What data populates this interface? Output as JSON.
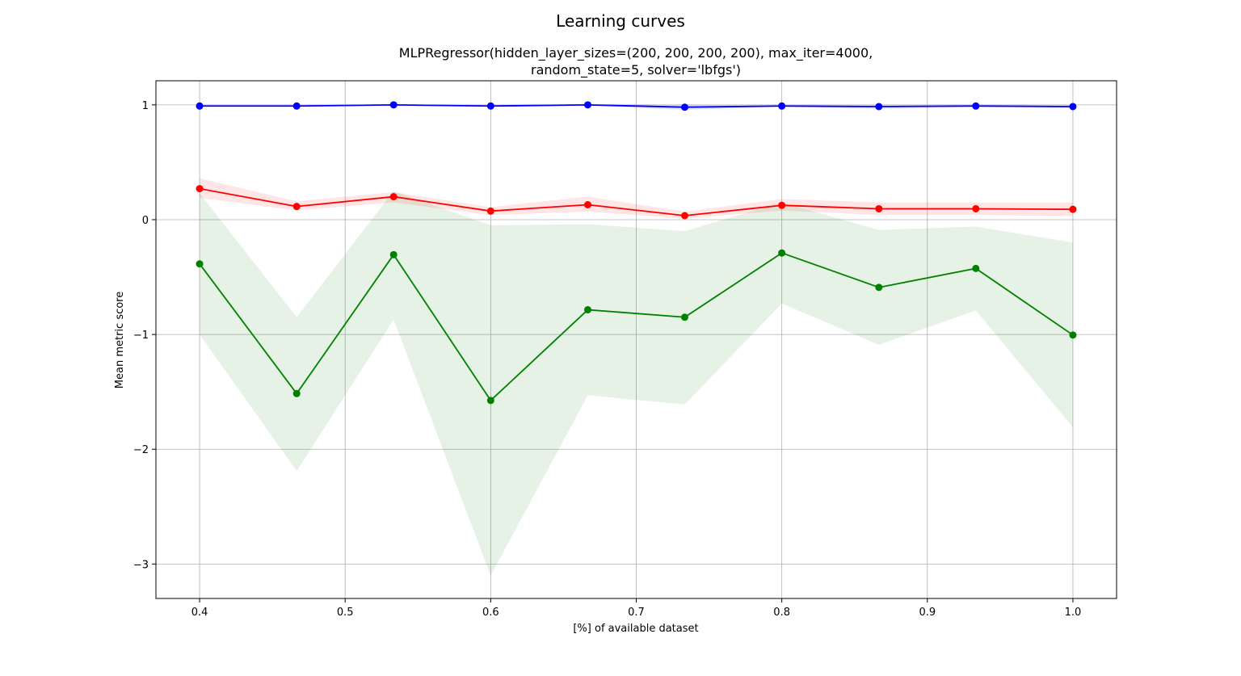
{
  "chart_data": {
    "type": "line",
    "title": "Learning curves",
    "subtitle_lines": [
      "MLPRegressor(hidden_layer_sizes=(200, 200, 200, 200), max_iter=4000,",
      "random_state=5, solver='lbfgs')"
    ],
    "xlabel": "[%] of available dataset",
    "ylabel": "Mean metric score",
    "xlim": [
      0.37,
      1.03
    ],
    "ylim": [
      -3.3,
      1.21
    ],
    "x_ticks": [
      0.4,
      0.5,
      0.6,
      0.7,
      0.8,
      0.9,
      1.0
    ],
    "x_tick_labels": [
      "0.4",
      "0.5",
      "0.6",
      "0.7",
      "0.8",
      "0.9",
      "1.0"
    ],
    "y_ticks": [
      -3,
      -2,
      -1,
      0,
      1
    ],
    "y_tick_labels": [
      "−3",
      "−2",
      "−1",
      "0",
      "1"
    ],
    "grid": true,
    "x": [
      0.4,
      0.4667,
      0.5333,
      0.6,
      0.6667,
      0.7333,
      0.8,
      0.8667,
      0.9333,
      1.0
    ],
    "series": [
      {
        "color": "#0000ff",
        "values": [
          0.99,
          0.99,
          1.0,
          0.99,
          1.0,
          0.98,
          0.99,
          0.985,
          0.99,
          0.985
        ],
        "band_lower": [
          0.985,
          0.985,
          0.995,
          0.985,
          0.995,
          0.955,
          0.985,
          0.965,
          0.98,
          0.97
        ],
        "band_upper": [
          0.995,
          0.995,
          1.005,
          0.995,
          1.005,
          1.0,
          0.995,
          1.0,
          1.0,
          1.0
        ]
      },
      {
        "color": "#ff0000",
        "values": [
          0.27,
          0.115,
          0.2,
          0.075,
          0.13,
          0.035,
          0.125,
          0.095,
          0.095,
          0.09
        ],
        "band_lower": [
          0.19,
          0.08,
          0.15,
          0.04,
          0.07,
          0.01,
          0.08,
          0.04,
          0.04,
          0.03
        ],
        "band_upper": [
          0.36,
          0.16,
          0.24,
          0.11,
          0.2,
          0.07,
          0.18,
          0.15,
          0.15,
          0.15
        ]
      },
      {
        "color": "#008000",
        "values": [
          -0.385,
          -1.515,
          -0.305,
          -1.575,
          -0.785,
          -0.85,
          -0.29,
          -0.59,
          -0.425,
          -1.005
        ],
        "band_lower": [
          -1.0,
          -2.19,
          -0.87,
          -3.1,
          -1.53,
          -1.61,
          -0.73,
          -1.09,
          -0.79,
          -1.81
        ],
        "band_upper": [
          0.23,
          -0.85,
          0.25,
          -0.05,
          -0.04,
          -0.1,
          0.15,
          -0.09,
          -0.06,
          -0.2
        ]
      }
    ]
  }
}
